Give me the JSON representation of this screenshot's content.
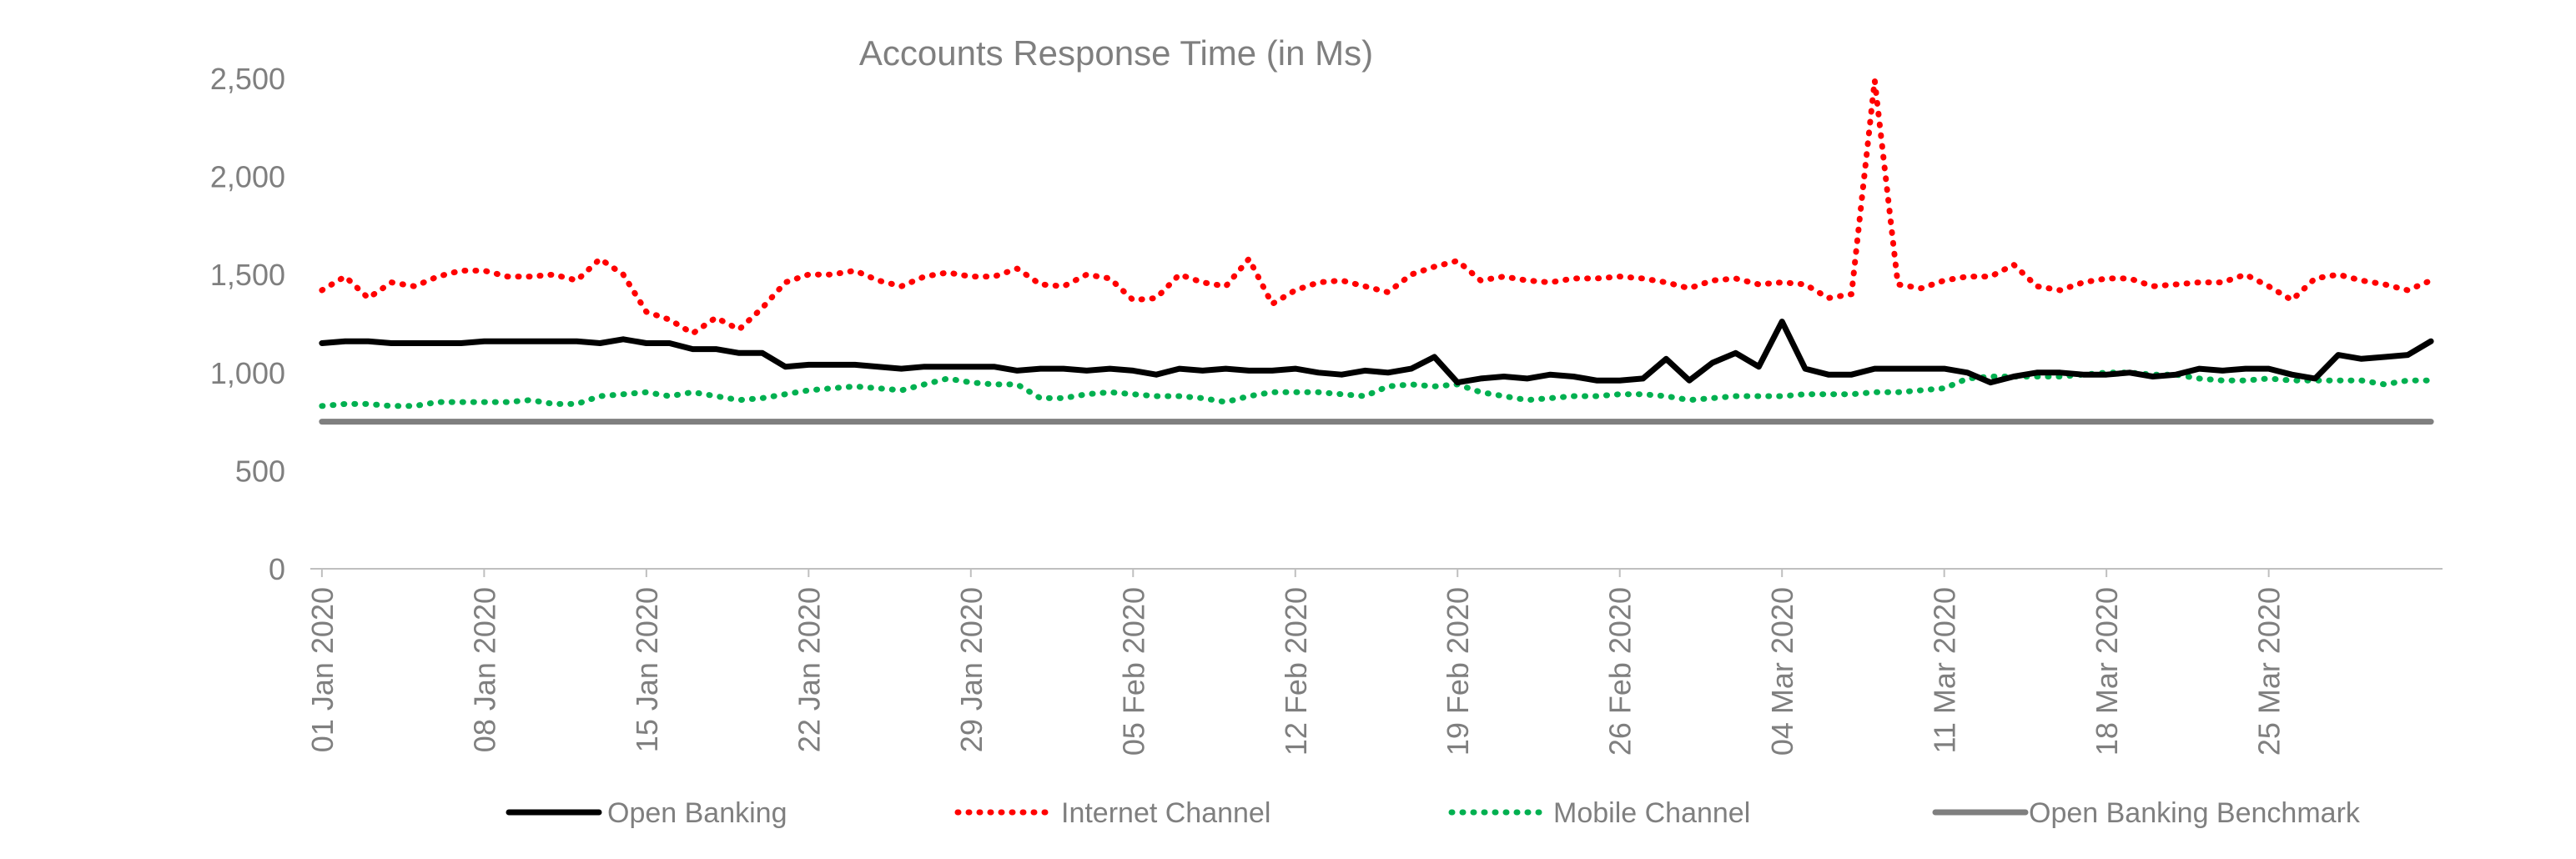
{
  "chart_data": {
    "type": "line",
    "title": "Accounts Response Time (in Ms)",
    "xlabel": "",
    "ylabel": "",
    "ylim": [
      0,
      2500
    ],
    "y_ticks": [
      0,
      500,
      1000,
      1500,
      2000,
      2500
    ],
    "y_tick_labels": [
      "0",
      "500",
      "1,000",
      "1,500",
      "2,000",
      "2,500"
    ],
    "x_tick_labels": [
      "01 Jan 2020",
      "08 Jan 2020",
      "15 Jan 2020",
      "22 Jan 2020",
      "29 Jan 2020",
      "05 Feb 2020",
      "12 Feb 2020",
      "19 Feb 2020",
      "26 Feb 2020",
      "04 Mar 2020",
      "11 Mar 2020",
      "18 Mar 2020",
      "25 Mar 2020"
    ],
    "x_tick_interval_days": 7,
    "x_start": "01 Jan 2020",
    "x_end": "31 Mar 2020",
    "grid": false,
    "legend_position": "bottom",
    "series": [
      {
        "name": "Open Banking",
        "color": "#000000",
        "style": "solid",
        "values": [
          1150,
          1160,
          1160,
          1150,
          1150,
          1150,
          1150,
          1160,
          1160,
          1160,
          1160,
          1160,
          1150,
          1170,
          1150,
          1150,
          1120,
          1120,
          1100,
          1100,
          1030,
          1040,
          1040,
          1040,
          1030,
          1020,
          1030,
          1030,
          1030,
          1030,
          1010,
          1020,
          1020,
          1010,
          1020,
          1010,
          990,
          1020,
          1010,
          1020,
          1010,
          1010,
          1020,
          1000,
          990,
          1010,
          1000,
          1020,
          1080,
          950,
          970,
          980,
          970,
          990,
          980,
          960,
          960,
          970,
          1070,
          960,
          1050,
          1100,
          1030,
          1260,
          1020,
          990,
          990,
          1020,
          1020,
          1020,
          1020,
          1000,
          950,
          980,
          1000,
          1000,
          990,
          990,
          1000,
          980,
          990,
          1020,
          1010,
          1020,
          1020,
          990,
          970,
          1090,
          1070,
          1080,
          1090,
          1160
        ]
      },
      {
        "name": "Internet Channel",
        "color": "#ff0000",
        "style": "dotted",
        "values": [
          1420,
          1490,
          1380,
          1460,
          1440,
          1490,
          1520,
          1520,
          1490,
          1490,
          1500,
          1470,
          1580,
          1500,
          1310,
          1270,
          1200,
          1280,
          1220,
          1330,
          1460,
          1500,
          1500,
          1520,
          1470,
          1440,
          1490,
          1510,
          1490,
          1490,
          1530,
          1450,
          1440,
          1500,
          1480,
          1370,
          1380,
          1500,
          1460,
          1440,
          1580,
          1350,
          1420,
          1460,
          1470,
          1440,
          1410,
          1500,
          1540,
          1570,
          1470,
          1490,
          1470,
          1460,
          1480,
          1480,
          1490,
          1480,
          1460,
          1430,
          1470,
          1480,
          1450,
          1460,
          1450,
          1380,
          1400,
          2490,
          1450,
          1430,
          1470,
          1490,
          1490,
          1550,
          1440,
          1420,
          1460,
          1480,
          1480,
          1440,
          1450,
          1460,
          1460,
          1500,
          1440,
          1370,
          1480,
          1500,
          1470,
          1450,
          1420,
          1470
        ]
      },
      {
        "name": "Mobile Channel",
        "color": "#00b050",
        "style": "dotted",
        "values": [
          830,
          840,
          840,
          830,
          830,
          850,
          850,
          850,
          850,
          860,
          840,
          840,
          880,
          890,
          900,
          880,
          900,
          880,
          860,
          870,
          890,
          910,
          920,
          930,
          920,
          910,
          940,
          970,
          950,
          940,
          940,
          870,
          870,
          890,
          900,
          890,
          880,
          880,
          870,
          850,
          880,
          900,
          900,
          900,
          890,
          880,
          930,
          940,
          930,
          940,
          900,
          880,
          860,
          870,
          880,
          880,
          890,
          890,
          880,
          860,
          870,
          880,
          880,
          880,
          890,
          890,
          890,
          900,
          900,
          910,
          920,
          970,
          980,
          980,
          980,
          980,
          990,
          1000,
          1000,
          990,
          990,
          970,
          960,
          960,
          970,
          960,
          960,
          960,
          960,
          940,
          960,
          960
        ]
      },
      {
        "name": "Open Banking Benchmark",
        "color": "#7f7f7f",
        "style": "solid",
        "constant": 750
      }
    ]
  }
}
